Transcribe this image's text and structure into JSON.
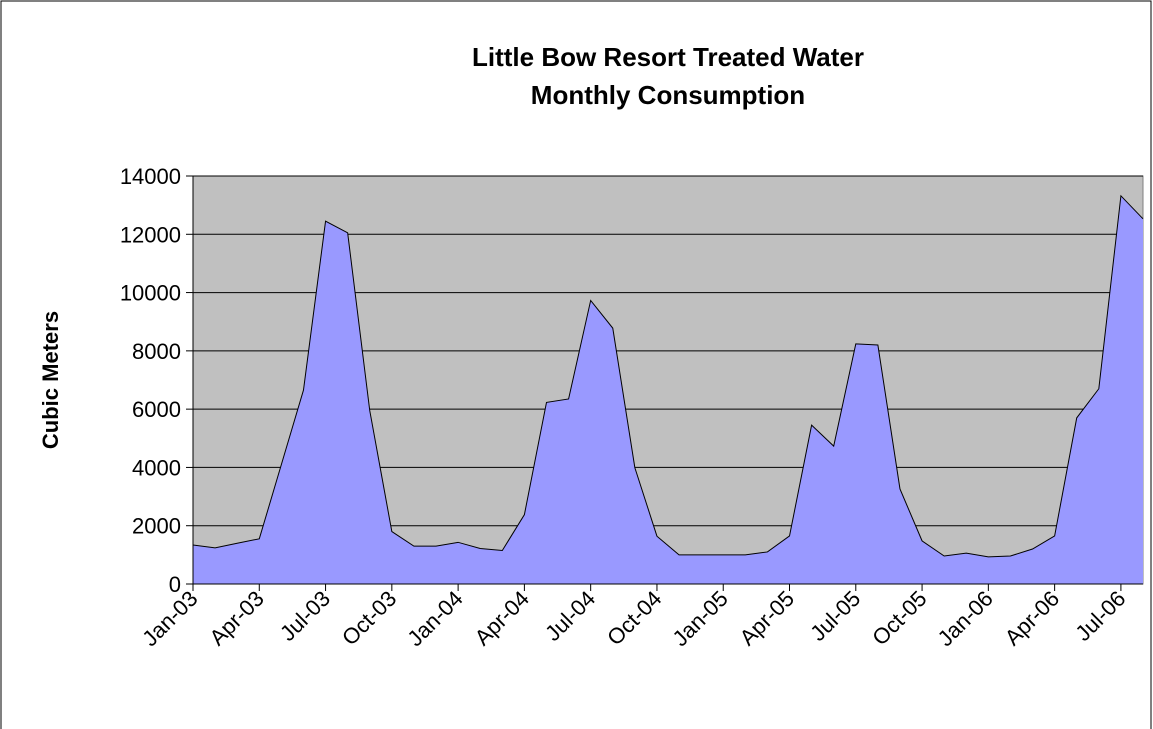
{
  "chart_data": {
    "type": "area",
    "title": [
      "Little Bow Resort Treated Water",
      "Monthly Consumption"
    ],
    "y_label": "Cubic Meters",
    "categories": [
      "Jan-03",
      null,
      null,
      "Apr-03",
      null,
      null,
      "Jul-03",
      null,
      null,
      "Oct-03",
      null,
      null,
      "Jan-04",
      null,
      null,
      "Apr-04",
      null,
      null,
      "Jul-04",
      null,
      null,
      "Oct-04",
      null,
      null,
      "Jan-05",
      null,
      null,
      "Apr-05",
      null,
      null,
      "Jul-05",
      null,
      null,
      "Oct-05",
      null,
      null,
      "Jan-06",
      null,
      null,
      "Apr-06",
      null,
      null,
      "Jul-06",
      null
    ],
    "values": [
      1340,
      1240,
      1400,
      1550,
      4100,
      6650,
      12450,
      12050,
      5950,
      1800,
      1300,
      1300,
      1430,
      1220,
      1150,
      2380,
      6230,
      6350,
      9730,
      8780,
      3990,
      1640,
      1000,
      1000,
      1000,
      1000,
      1100,
      1650,
      5450,
      4730,
      8240,
      8200,
      3260,
      1480,
      960,
      1060,
      930,
      960,
      1200,
      1650,
      5700,
      6700,
      13320,
      12530
    ],
    "color": "#9999ff",
    "plot_background": "#c0c0c0",
    "ylim": [
      0,
      14000
    ],
    "yticks": [
      0,
      2000,
      4000,
      6000,
      8000,
      10000,
      12000,
      14000
    ],
    "grid": true
  }
}
